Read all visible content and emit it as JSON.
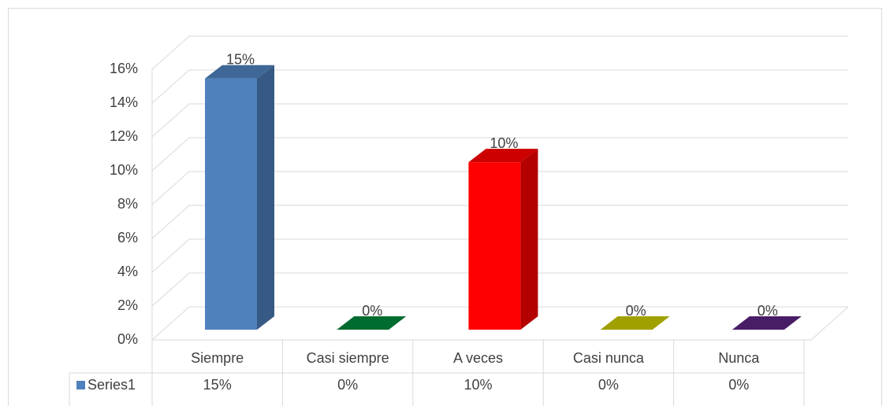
{
  "chart_data": {
    "type": "bar3d",
    "categories": [
      "Siempre",
      "Casi siempre",
      "A veces",
      "Casi nunca",
      "Nunca"
    ],
    "series": [
      {
        "name": "Series1",
        "colors": [
          "#4f81bd",
          "#00873c",
          "#ff0000",
          "#c8c800",
          "#5b2380"
        ],
        "values": [
          15,
          0,
          10,
          0,
          0
        ],
        "value_labels": [
          "15%",
          "0%",
          "10%",
          "0%",
          "0%"
        ]
      }
    ],
    "ylim": [
      0,
      16
    ],
    "yticks": [
      {
        "value": 0,
        "label": "0%"
      },
      {
        "value": 2,
        "label": "2%"
      },
      {
        "value": 4,
        "label": "4%"
      },
      {
        "value": 6,
        "label": "6%"
      },
      {
        "value": 8,
        "label": "8%"
      },
      {
        "value": 10,
        "label": "10%"
      },
      {
        "value": 12,
        "label": "12%"
      },
      {
        "value": 14,
        "label": "14%"
      },
      {
        "value": 16,
        "label": "16%"
      }
    ],
    "grid": true,
    "data_table": true
  }
}
